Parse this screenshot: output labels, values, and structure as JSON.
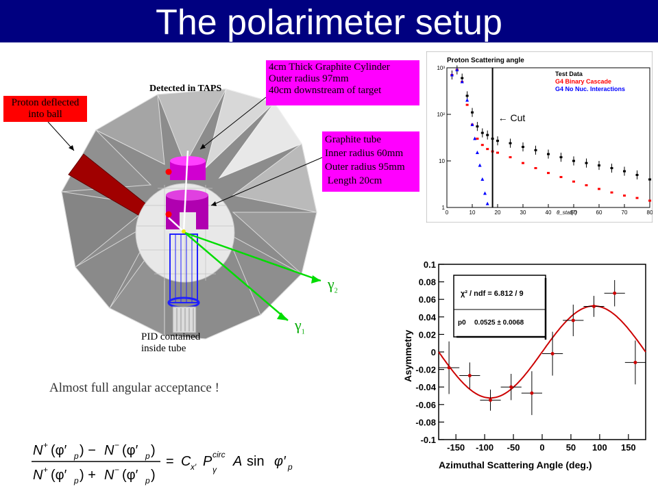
{
  "slide": {
    "title": "The polarimeter setup"
  },
  "detector": {
    "label_taps": "Detected in TAPS",
    "label_proton": "Proton deflected into ball",
    "cylinder_box": [
      "4cm Thick Graphite Cylinder",
      "Outer radius 97mm",
      "40cm downstream of target"
    ],
    "tube_box": [
      "Graphite tube",
      "Inner radius 60mm",
      "Outer radius 95mm",
      " Length 20cm"
    ],
    "label_pid": [
      "PID contained",
      "inside tube"
    ],
    "gamma_1": "γ",
    "gamma_1_sub": "1",
    "gamma_2": "γ",
    "gamma_2_sub": "2",
    "acceptance": "Almost full angular acceptance !",
    "colors": {
      "box_magenta": "#ff00ff",
      "proton_red": "#ff0000",
      "ball_grey": "#8c8c8c",
      "pid_blue": "#2020ff",
      "gamma_green": "#00cc00"
    }
  },
  "chart_data": [
    {
      "type": "scatter",
      "title": "Proton Scattering angle",
      "xlabel": "θ_stat(°)",
      "ylabel": "",
      "xlim": [
        0,
        80
      ],
      "ylim": [
        1,
        1000
      ],
      "log_y": true,
      "xticks": [
        "0",
        "10",
        "20",
        "30",
        "40",
        "50",
        "60",
        "70",
        "80"
      ],
      "yticks": [
        "1",
        "10",
        "10²",
        "10³"
      ],
      "annotation": "← Cut",
      "cut_x": 18,
      "legend": [
        "Test Data",
        "G4 Binary Cascade",
        "G4 No Nuc. Interactions"
      ],
      "legend_position": "top-right",
      "series": [
        {
          "name": "Test Data",
          "color": "#000000",
          "x": [
            2,
            4,
            6,
            8,
            10,
            12,
            14,
            16,
            18,
            20,
            25,
            30,
            35,
            40,
            45,
            50,
            55,
            60,
            65,
            70,
            75,
            80
          ],
          "y": [
            700,
            900,
            600,
            250,
            110,
            55,
            40,
            36,
            30,
            27,
            24,
            20,
            17,
            14,
            12,
            10,
            9,
            8,
            7,
            6,
            5,
            4
          ]
        },
        {
          "name": "G4 Binary Cascade",
          "color": "#ff0000",
          "x": [
            2,
            4,
            6,
            8,
            10,
            12,
            14,
            16,
            18,
            20,
            25,
            30,
            35,
            40,
            45,
            50,
            55,
            60,
            65,
            70,
            75,
            80
          ],
          "y": [
            700,
            900,
            500,
            160,
            60,
            30,
            22,
            18,
            16,
            15,
            12,
            9,
            7,
            5.5,
            4.5,
            3.6,
            3,
            2.5,
            2.1,
            1.8,
            1.6,
            1.4
          ]
        },
        {
          "name": "G4 No Nuc. Interactions",
          "color": "#0000ff",
          "x": [
            2,
            4,
            6,
            8,
            10,
            11,
            12,
            13,
            14,
            15,
            16
          ],
          "y": [
            700,
            900,
            500,
            200,
            60,
            30,
            15,
            8,
            4,
            2,
            1.2
          ]
        }
      ]
    },
    {
      "type": "scatter",
      "title": "",
      "xlabel": "Azimuthal Scattering Angle (deg.)",
      "ylabel": "Asymmetry",
      "xlim": [
        -180,
        180
      ],
      "ylim": [
        -0.1,
        0.1
      ],
      "xticks": [
        "-150",
        "-100",
        "-50",
        "0",
        "50",
        "100",
        "150"
      ],
      "yticks": [
        "-0.1",
        "-0.08",
        "-0.06",
        "-0.04",
        "-0.02",
        "0",
        "0.02",
        "0.04",
        "0.06",
        "0.08",
        "0.1"
      ],
      "stats_box": {
        "chi2": "χ² / ndf = 6.812 / 9",
        "p0_label": "p0",
        "p0_value": "0.0525 ± 0.0068"
      },
      "fit": {
        "amplitude": 0.0525,
        "function": "A sin(phi)",
        "color": "#cc0000"
      },
      "points": [
        {
          "x": -162,
          "y": -0.018,
          "ey": 0.03,
          "ex": 18
        },
        {
          "x": -126,
          "y": -0.027,
          "ey": 0.015,
          "ex": 18
        },
        {
          "x": -90,
          "y": -0.055,
          "ey": 0.012,
          "ex": 18
        },
        {
          "x": -54,
          "y": -0.04,
          "ey": 0.015,
          "ex": 18
        },
        {
          "x": -18,
          "y": -0.047,
          "ey": 0.025,
          "ex": 18
        },
        {
          "x": 18,
          "y": -0.002,
          "ey": 0.025,
          "ex": 18
        },
        {
          "x": 54,
          "y": 0.036,
          "ey": 0.018,
          "ex": 18
        },
        {
          "x": 90,
          "y": 0.052,
          "ey": 0.012,
          "ex": 18
        },
        {
          "x": 126,
          "y": 0.067,
          "ey": 0.015,
          "ex": 18
        },
        {
          "x": 162,
          "y": -0.012,
          "ey": 0.025,
          "ex": 18
        }
      ]
    }
  ]
}
